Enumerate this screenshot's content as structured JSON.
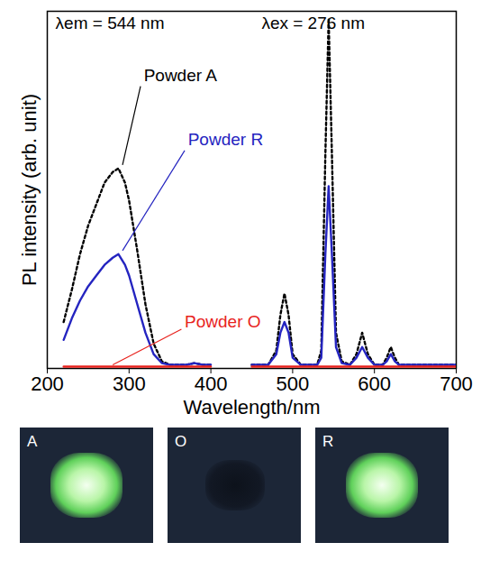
{
  "chart_data": {
    "type": "line",
    "x_label": "Wavelength/nm",
    "y_label": "PL intensity (arb. unit)",
    "xlim": [
      200,
      700
    ],
    "xticks": [
      200,
      300,
      400,
      500,
      600,
      700
    ],
    "ylim": [
      0,
      1
    ],
    "yticks": [],
    "tick_labels": "x",
    "annotations": [
      "λem = 544 nm",
      "λex = 276 nm"
    ],
    "x": [
      220,
      230,
      240,
      250,
      260,
      270,
      280,
      287,
      295,
      300,
      310,
      320,
      330,
      340,
      350,
      360,
      370,
      380,
      390,
      400,
      425,
      450,
      460,
      470,
      480,
      485,
      490,
      495,
      500,
      510,
      520,
      530,
      535,
      540,
      544,
      548,
      553,
      560,
      570,
      578,
      585,
      592,
      600,
      610,
      615,
      620,
      625,
      630,
      640,
      650,
      660,
      670,
      680,
      690,
      700
    ],
    "series": [
      {
        "name": "Powder A",
        "color": "#000000",
        "line_style": "dotted",
        "values": [
          0.13,
          0.22,
          0.32,
          0.4,
          0.46,
          0.52,
          0.55,
          0.56,
          0.52,
          0.47,
          0.33,
          0.18,
          0.07,
          0.02,
          0.01,
          0.01,
          0.01,
          0.015,
          0.01,
          0.01,
          null,
          0.01,
          0.01,
          0.01,
          0.05,
          0.15,
          0.21,
          0.15,
          0.04,
          0.01,
          0.01,
          0.01,
          0.05,
          0.6,
          0.98,
          0.6,
          0.1,
          0.02,
          0.01,
          0.04,
          0.1,
          0.04,
          0.01,
          0.01,
          0.03,
          0.06,
          0.03,
          0.01,
          0.01,
          0.01,
          0.01,
          0.01,
          0.01,
          0.01,
          0.01
        ]
      },
      {
        "name": "Powder R",
        "color": "#2424c0",
        "line_style": "solid",
        "values": [
          0.08,
          0.14,
          0.19,
          0.23,
          0.26,
          0.29,
          0.31,
          0.32,
          0.29,
          0.26,
          0.18,
          0.1,
          0.04,
          0.015,
          0.01,
          0.01,
          0.01,
          0.015,
          0.01,
          0.01,
          null,
          0.01,
          0.01,
          0.01,
          0.04,
          0.1,
          0.13,
          0.1,
          0.03,
          0.01,
          0.01,
          0.01,
          0.03,
          0.32,
          0.51,
          0.32,
          0.06,
          0.015,
          0.01,
          0.03,
          0.06,
          0.03,
          0.01,
          0.01,
          0.02,
          0.04,
          0.02,
          0.01,
          0.01,
          0.01,
          0.01,
          0.01,
          0.01,
          0.01,
          0.01
        ]
      },
      {
        "name": "Powder O",
        "color": "#e8231e",
        "line_style": "solid",
        "values": [
          0.005,
          0.005,
          0.005,
          0.005,
          0.005,
          0.005,
          0.005,
          0.005,
          0.005,
          0.005,
          0.005,
          0.005,
          0.005,
          0.005,
          0.005,
          0.005,
          0.005,
          0.005,
          0.005,
          0.005,
          null,
          0.005,
          0.005,
          0.005,
          0.005,
          0.005,
          0.005,
          0.005,
          0.005,
          0.005,
          0.005,
          0.005,
          0.005,
          0.005,
          0.005,
          0.005,
          0.005,
          0.005,
          0.005,
          0.005,
          0.005,
          0.005,
          0.005,
          0.005,
          0.005,
          0.005,
          0.005,
          0.005,
          0.005,
          0.005,
          0.005,
          0.005,
          0.005,
          0.005,
          0.005
        ]
      }
    ]
  },
  "photos": {
    "labels": [
      "A",
      "O",
      "R"
    ],
    "glow": [
      true,
      false,
      true
    ]
  }
}
